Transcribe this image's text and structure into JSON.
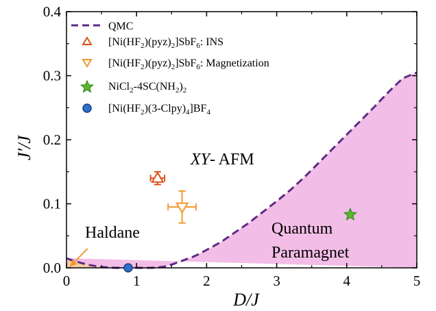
{
  "chart_data": {
    "type": "scatter",
    "xlabel": "D/J",
    "ylabel": "J′/J",
    "xlim": [
      0,
      5
    ],
    "ylim": [
      0,
      0.4
    ],
    "xticks": [
      "0",
      "1",
      "2",
      "3",
      "4",
      "5"
    ],
    "yticks": [
      "0.0",
      "0.1",
      "0.2",
      "0.3",
      "0.4"
    ],
    "grid": false,
    "legend_position": "top-left",
    "qmc_boundary": {
      "name": "QMC",
      "color": "#5e2a84",
      "fill_color": "#f2bde6",
      "x": [
        0.0,
        0.1,
        0.2,
        0.3,
        0.4,
        0.5,
        0.6,
        0.7,
        0.8,
        0.9,
        1.0,
        1.1,
        1.2,
        1.3,
        1.4,
        1.5,
        1.6,
        1.7,
        1.8,
        1.9,
        2.0,
        2.2,
        2.4,
        2.6,
        2.8,
        3.0,
        3.2,
        3.4,
        3.6,
        3.8,
        4.0,
        4.2,
        4.4,
        4.6,
        4.8,
        5.0
      ],
      "y": [
        0.015,
        0.011,
        0.008,
        0.005,
        0.003,
        0.0015,
        0.0005,
        0.0,
        0.0,
        0.0,
        0.0,
        0.0,
        0.0,
        0.0005,
        0.002,
        0.005,
        0.009,
        0.013,
        0.017,
        0.022,
        0.028,
        0.04,
        0.055,
        0.07,
        0.087,
        0.104,
        0.122,
        0.142,
        0.164,
        0.186,
        0.208,
        0.23,
        0.252,
        0.275,
        0.296,
        0.305
      ]
    },
    "haldane_region": {
      "fill_color": "#f6c9a6",
      "x": [
        0.0,
        0.1,
        0.2,
        0.3,
        0.4,
        0.5,
        0.6,
        0.7
      ],
      "y": [
        0.015,
        0.011,
        0.008,
        0.005,
        0.003,
        0.0015,
        0.0005,
        0.0
      ]
    },
    "series": [
      {
        "name": "[Ni(HF2)(pyz)2]SbF6: INS",
        "marker": "triangle-up",
        "color": "#d95319",
        "filled": false,
        "x": 1.3,
        "y": 0.14,
        "xerr": 0.1,
        "yerr": 0.01
      },
      {
        "name": "[Ni(HF2)(pyz)2]SbF6: Magnetization",
        "marker": "triangle-down",
        "color": "#f2982e",
        "filled": false,
        "x": 1.65,
        "y": 0.095,
        "xerr": 0.2,
        "yerr": 0.025
      },
      {
        "name": "NiCl2-4SC(NH2)2",
        "marker": "star",
        "color": "#3a8a1e",
        "fill": "#5cb82e",
        "filled": true,
        "x": 4.05,
        "y": 0.083
      },
      {
        "name": "[Ni(HF2)(3-Clpy)4]BF4",
        "marker": "circle",
        "color": "#1a3f7a",
        "fill": "#2e6fd0",
        "filled": true,
        "x": 0.88,
        "y": 0.0
      }
    ],
    "annotations": [
      {
        "text": "XY- AFM",
        "italic_part": "XY",
        "rest": "- AFM",
        "x": 2.7,
        "y": 0.2
      },
      {
        "text": "Haldane",
        "x": 0.3,
        "y": 0.065
      },
      {
        "text": "Quantum",
        "x": 3.45,
        "y": 0.07
      },
      {
        "text": "Paramagnet",
        "x": 3.45,
        "y": 0.025
      }
    ],
    "arrow": {
      "color": "#f2982e",
      "from": [
        0.3,
        0.03
      ],
      "to": [
        0.05,
        0.002
      ]
    }
  },
  "legend": {
    "qmc": "QMC",
    "ins": {
      "a": "[Ni(HF",
      "s1": "2",
      "b": ")(pyz)",
      "s2": "2",
      "c": "]SbF",
      "s3": "6",
      "d": ": INS"
    },
    "mag": {
      "a": "[Ni(HF",
      "s1": "2",
      "b": ")(pyz)",
      "s2": "2",
      "c": "]SbF",
      "s3": "6",
      "d": ": Magnetization"
    },
    "nicl": {
      "a": "NiCl",
      "s1": "2",
      "b": "-4SC(NH",
      "s2": "2",
      "c": ")",
      "s3": "2"
    },
    "clpy": {
      "a": "[Ni(HF",
      "s1": "2",
      "b": ")(3-Clpy)",
      "s2": "4",
      "c": "]BF",
      "s3": "4"
    }
  }
}
